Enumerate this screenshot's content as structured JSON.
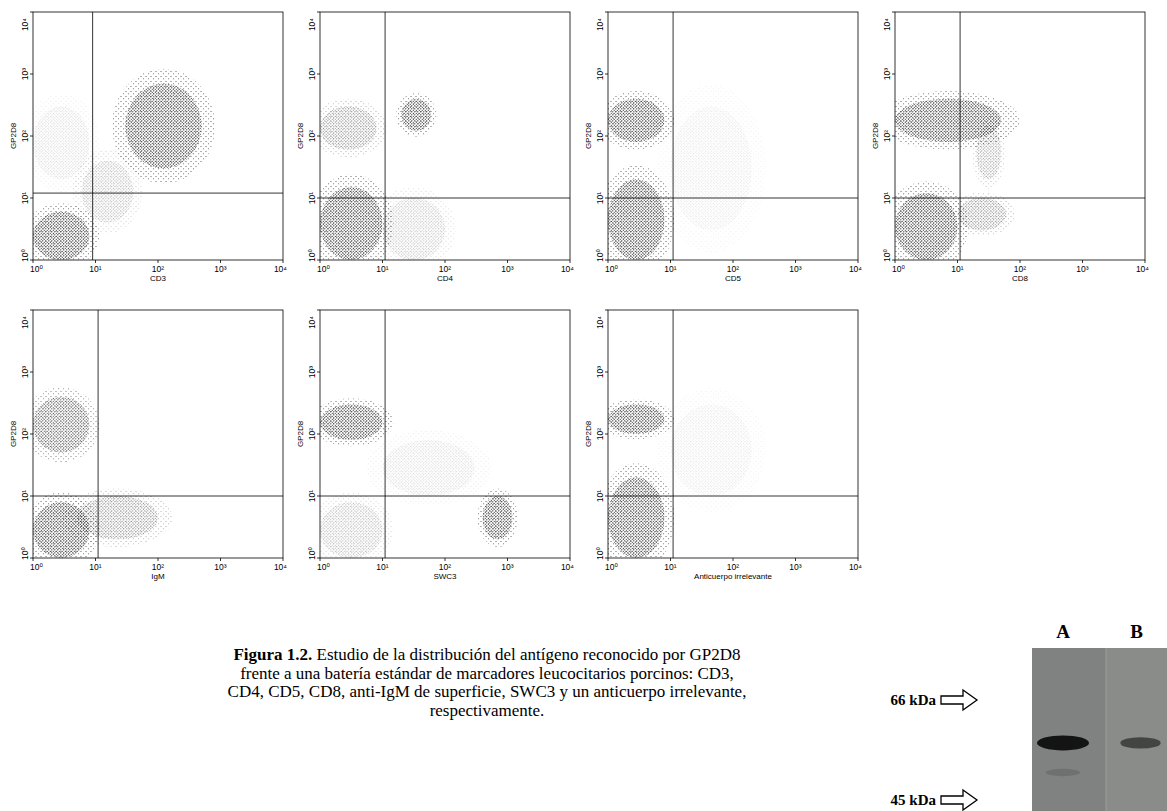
{
  "chart_data": [
    {
      "type": "scatter",
      "x_label": "CD3",
      "y_label": "GP2D8",
      "log": true,
      "grid": false,
      "xlim": [
        1,
        10000
      ],
      "ylim": [
        1,
        10000
      ],
      "xticks": [
        {
          "value": 1,
          "label": "10⁰"
        },
        {
          "value": 10,
          "label": "10¹"
        },
        {
          "value": 100,
          "label": "10²"
        },
        {
          "value": 1000,
          "label": "10³"
        },
        {
          "value": 10000,
          "label": "10⁴"
        }
      ],
      "yticks": [
        {
          "value": 1,
          "label": "10⁰"
        },
        {
          "value": 10,
          "label": "10¹"
        },
        {
          "value": 100,
          "label": "10²"
        },
        {
          "value": 1000,
          "label": "10³"
        },
        {
          "value": 10000,
          "label": "10⁴"
        }
      ],
      "quadrant": {
        "x": 9,
        "y": 12
      },
      "clusters": [
        {
          "x_range": [
            1,
            8
          ],
          "y_range": [
            1,
            6
          ],
          "density": 1
        },
        {
          "x_range": [
            30,
            500
          ],
          "y_range": [
            30,
            700
          ],
          "density": 1
        },
        {
          "x_range": [
            6,
            40
          ],
          "y_range": [
            4,
            40
          ],
          "density": 0.3
        },
        {
          "x_range": [
            1,
            8
          ],
          "y_range": [
            20,
            300
          ],
          "density": 0.15
        }
      ]
    },
    {
      "type": "scatter",
      "x_label": "CD4",
      "y_label": "GP2D8",
      "log": true,
      "grid": false,
      "xlim": [
        1,
        10000
      ],
      "ylim": [
        1,
        10000
      ],
      "xticks": [
        {
          "value": 1,
          "label": "10⁰"
        },
        {
          "value": 10,
          "label": "10¹"
        },
        {
          "value": 100,
          "label": "10²"
        },
        {
          "value": 1000,
          "label": "10³"
        },
        {
          "value": 10000,
          "label": "10⁴"
        }
      ],
      "yticks": [
        {
          "value": 1,
          "label": "10⁰"
        },
        {
          "value": 10,
          "label": "10¹"
        },
        {
          "value": 100,
          "label": "10²"
        },
        {
          "value": 1000,
          "label": "10³"
        },
        {
          "value": 10000,
          "label": "10⁴"
        }
      ],
      "quadrant": {
        "x": 11,
        "y": 10
      },
      "clusters": [
        {
          "x_range": [
            1,
            10
          ],
          "y_range": [
            1,
            15
          ],
          "density": 1
        },
        {
          "x_range": [
            1,
            8
          ],
          "y_range": [
            60,
            300
          ],
          "density": 0.5
        },
        {
          "x_range": [
            20,
            60
          ],
          "y_range": [
            120,
            400
          ],
          "density": 1
        },
        {
          "x_range": [
            10,
            100
          ],
          "y_range": [
            1,
            10
          ],
          "density": 0.25
        }
      ]
    },
    {
      "type": "scatter",
      "x_label": "CD5",
      "y_label": "GP2D8",
      "log": true,
      "grid": false,
      "xlim": [
        1,
        10000
      ],
      "ylim": [
        1,
        10000
      ],
      "xticks": [
        {
          "value": 1,
          "label": "10⁰"
        },
        {
          "value": 10,
          "label": "10¹"
        },
        {
          "value": 100,
          "label": "10²"
        },
        {
          "value": 1000,
          "label": "10³"
        },
        {
          "value": 10000,
          "label": "10⁴"
        }
      ],
      "yticks": [
        {
          "value": 1,
          "label": "10⁰"
        },
        {
          "value": 10,
          "label": "10¹"
        },
        {
          "value": 100,
          "label": "10²"
        },
        {
          "value": 1000,
          "label": "10³"
        },
        {
          "value": 10000,
          "label": "10⁴"
        }
      ],
      "quadrant": {
        "x": 11,
        "y": 10
      },
      "clusters": [
        {
          "x_range": [
            1,
            8
          ],
          "y_range": [
            80,
            400
          ],
          "density": 1
        },
        {
          "x_range": [
            1,
            8
          ],
          "y_range": [
            1,
            20
          ],
          "density": 1
        },
        {
          "x_range": [
            10,
            200
          ],
          "y_range": [
            3,
            300
          ],
          "density": 0.1
        }
      ]
    },
    {
      "type": "scatter",
      "x_label": "CD8",
      "y_label": "GP2D8",
      "log": true,
      "grid": false,
      "xlim": [
        1,
        10000
      ],
      "ylim": [
        1,
        10000
      ],
      "xticks": [
        {
          "value": 1,
          "label": "10⁰"
        },
        {
          "value": 10,
          "label": "10¹"
        },
        {
          "value": 100,
          "label": "10²"
        },
        {
          "value": 1000,
          "label": "10³"
        },
        {
          "value": 10000,
          "label": "10⁴"
        }
      ],
      "yticks": [
        {
          "value": 1,
          "label": "10⁰"
        },
        {
          "value": 10,
          "label": "10¹"
        },
        {
          "value": 100,
          "label": "10²"
        },
        {
          "value": 1000,
          "label": "10³"
        },
        {
          "value": 10000,
          "label": "10⁴"
        }
      ],
      "quadrant": {
        "x": 11,
        "y": 10
      },
      "clusters": [
        {
          "x_range": [
            1,
            50
          ],
          "y_range": [
            80,
            400
          ],
          "density": 1
        },
        {
          "x_range": [
            1,
            10
          ],
          "y_range": [
            1,
            12
          ],
          "density": 1
        },
        {
          "x_range": [
            10,
            60
          ],
          "y_range": [
            3,
            10
          ],
          "density": 0.5
        },
        {
          "x_range": [
            20,
            50
          ],
          "y_range": [
            20,
            150
          ],
          "density": 0.4
        }
      ]
    },
    {
      "type": "scatter",
      "x_label": "IgM",
      "y_label": "GP2D8",
      "log": true,
      "grid": false,
      "xlim": [
        1,
        10000
      ],
      "ylim": [
        1,
        10000
      ],
      "xticks": [
        {
          "value": 1,
          "label": "10⁰"
        },
        {
          "value": 10,
          "label": "10¹"
        },
        {
          "value": 100,
          "label": "10²"
        },
        {
          "value": 1000,
          "label": "10³"
        },
        {
          "value": 10000,
          "label": "10⁴"
        }
      ],
      "yticks": [
        {
          "value": 1,
          "label": "10⁰"
        },
        {
          "value": 10,
          "label": "10¹"
        },
        {
          "value": 100,
          "label": "10²"
        },
        {
          "value": 1000,
          "label": "10³"
        },
        {
          "value": 10000,
          "label": "10⁴"
        }
      ],
      "quadrant": {
        "x": 11,
        "y": 10
      },
      "clusters": [
        {
          "x_range": [
            1,
            8
          ],
          "y_range": [
            50,
            400
          ],
          "density": 0.8
        },
        {
          "x_range": [
            1,
            8
          ],
          "y_range": [
            1,
            8
          ],
          "density": 1
        },
        {
          "x_range": [
            5,
            100
          ],
          "y_range": [
            2,
            10
          ],
          "density": 0.5
        }
      ]
    },
    {
      "type": "scatter",
      "x_label": "SWC3",
      "y_label": "GP2D8",
      "log": true,
      "grid": false,
      "xlim": [
        1,
        10000
      ],
      "ylim": [
        1,
        10000
      ],
      "xticks": [
        {
          "value": 1,
          "label": "10⁰"
        },
        {
          "value": 10,
          "label": "10¹"
        },
        {
          "value": 100,
          "label": "10²"
        },
        {
          "value": 1000,
          "label": "10³"
        },
        {
          "value": 10000,
          "label": "10⁴"
        }
      ],
      "yticks": [
        {
          "value": 1,
          "label": "10⁰"
        },
        {
          "value": 10,
          "label": "10¹"
        },
        {
          "value": 100,
          "label": "10²"
        },
        {
          "value": 1000,
          "label": "10³"
        },
        {
          "value": 10000,
          "label": "10⁴"
        }
      ],
      "quadrant": {
        "x": 11,
        "y": 10
      },
      "clusters": [
        {
          "x_range": [
            1,
            10
          ],
          "y_range": [
            80,
            300
          ],
          "density": 1
        },
        {
          "x_range": [
            400,
            1200
          ],
          "y_range": [
            2,
            10
          ],
          "density": 1
        },
        {
          "x_range": [
            1,
            10
          ],
          "y_range": [
            1,
            8
          ],
          "density": 0.3
        },
        {
          "x_range": [
            10,
            300
          ],
          "y_range": [
            10,
            80
          ],
          "density": 0.15
        }
      ]
    },
    {
      "type": "scatter",
      "x_label": "Anticuerpo irrelevante",
      "y_label": "GP2D8",
      "log": true,
      "grid": false,
      "xlim": [
        1,
        10000
      ],
      "ylim": [
        1,
        10000
      ],
      "xticks": [
        {
          "value": 1,
          "label": "10⁰"
        },
        {
          "value": 10,
          "label": "10¹"
        },
        {
          "value": 100,
          "label": "10²"
        },
        {
          "value": 1000,
          "label": "10³"
        },
        {
          "value": 10000,
          "label": "10⁴"
        }
      ],
      "yticks": [
        {
          "value": 1,
          "label": "10⁰"
        },
        {
          "value": 10,
          "label": "10¹"
        },
        {
          "value": 100,
          "label": "10²"
        },
        {
          "value": 1000,
          "label": "10³"
        },
        {
          "value": 10000,
          "label": "10⁴"
        }
      ],
      "quadrant": {
        "x": 11,
        "y": 10
      },
      "clusters": [
        {
          "x_range": [
            1,
            8
          ],
          "y_range": [
            100,
            300
          ],
          "density": 1
        },
        {
          "x_range": [
            1,
            8
          ],
          "y_range": [
            1,
            20
          ],
          "density": 1
        },
        {
          "x_range": [
            10,
            200
          ],
          "y_range": [
            10,
            300
          ],
          "density": 0.1
        }
      ]
    }
  ],
  "caption": {
    "label": "Figura 1.2.",
    "lines": [
      "Estudio de la distribución del antígeno reconocido por GP2D8",
      "frente a una batería estándar de marcadores leucocitarios porcinos: CD3,",
      "CD4, CD5, CD8, anti-IgM de superficie, SWC3 y un anticuerpo irrelevante,",
      "respectivamente."
    ]
  },
  "blot": {
    "lanes": [
      "A",
      "B"
    ],
    "markers": [
      {
        "value": 66,
        "label": "66 kDa"
      },
      {
        "value": 45,
        "label": "45 kDa"
      }
    ],
    "bands": [
      {
        "lane": 0,
        "kda": 56,
        "intensity": 1
      },
      {
        "lane": 1,
        "kda": 56,
        "intensity": 0.6
      },
      {
        "lane": 0,
        "kda": 50,
        "intensity": 0.15
      }
    ]
  }
}
